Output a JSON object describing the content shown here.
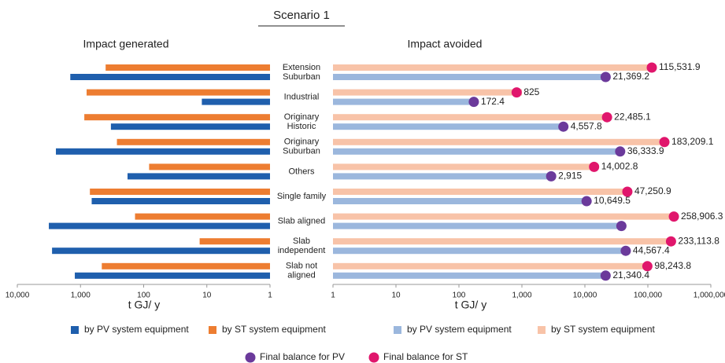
{
  "title": "Scenario 1",
  "chart_data": [
    {
      "type": "bar",
      "orientation": "horizontal",
      "title": "Impact generated",
      "xlabel": "t GJ/ y",
      "xlog": true,
      "xlim": [
        10000,
        1
      ],
      "xticks": [
        {
          "value": 10000,
          "label": "10,000"
        },
        {
          "value": 1000,
          "label": "1,000"
        },
        100,
        10,
        1
      ],
      "categories": [
        [
          "Extension",
          "Suburban"
        ],
        [
          "Industrial"
        ],
        [
          "Originary",
          "Historic"
        ],
        [
          "Originary",
          "Suburban"
        ],
        [
          "Others"
        ],
        [
          "Single family"
        ],
        [
          "Slab aligned"
        ],
        [
          "Slab",
          "independent"
        ],
        [
          "Slab not",
          "aligned"
        ]
      ],
      "series": [
        {
          "name": "by ST system equipment",
          "color": "#ed7d31",
          "values": [
            400,
            800,
            870,
            265,
            82,
            710,
            137,
            13,
            460
          ]
        },
        {
          "name": "by PV system equipment",
          "color": "#1f5fad",
          "values": [
            1450,
            12,
            330,
            2450,
            180,
            665,
            3170,
            2820,
            1230
          ]
        }
      ]
    },
    {
      "type": "bar",
      "orientation": "horizontal",
      "title": "Impact avoided",
      "xlabel": "t GJ/ y",
      "xlog": true,
      "xlim": [
        1,
        1000000
      ],
      "xticks": [
        1,
        10,
        100,
        {
          "value": 1000,
          "label": "1,000"
        },
        {
          "value": 10000,
          "label": "10,000"
        },
        {
          "value": 100000,
          "label": "100,000"
        },
        {
          "value": 1000000,
          "label": "1,000,000"
        }
      ],
      "series": [
        {
          "name": "by ST system equipment",
          "color": "#f8c3a8",
          "values": [
            122000,
            1000,
            23500,
            190000,
            15000,
            48500,
            270000,
            240000,
            100000
          ]
        },
        {
          "name": "by PV system equipment",
          "color": "#9bb7dd",
          "values": [
            22500,
            185,
            5000,
            38000,
            3100,
            11000,
            40000,
            47000,
            22500
          ]
        },
        {
          "name": "Final balance for PV",
          "marker": "dot",
          "row": 1,
          "color": "#6b3a9b",
          "values": [
            21369.2,
            172.4,
            4557.8,
            36333.9,
            2915,
            10649.5,
            38000,
            44567.4,
            21340.4
          ],
          "value_labels": [
            "21,369.2",
            "172.4",
            "4,557.8",
            "36,333.9",
            "2,915",
            "10,649.5",
            null,
            "44,567.4",
            "21,340.4"
          ]
        },
        {
          "name": "Final balance for ST",
          "marker": "dot",
          "row": 0,
          "color": "#e0166c",
          "values": [
            115531.9,
            825,
            22485.1,
            183209.1,
            14002.8,
            47250.9,
            258906.3,
            233113.8,
            98243.8
          ],
          "value_labels": [
            "115,531.9",
            "825",
            "22,485.1",
            "183,209.1",
            "14,002.8",
            "47,250.9",
            "258,906.3",
            "233,113.8",
            "98,243.8"
          ]
        }
      ]
    }
  ]
}
